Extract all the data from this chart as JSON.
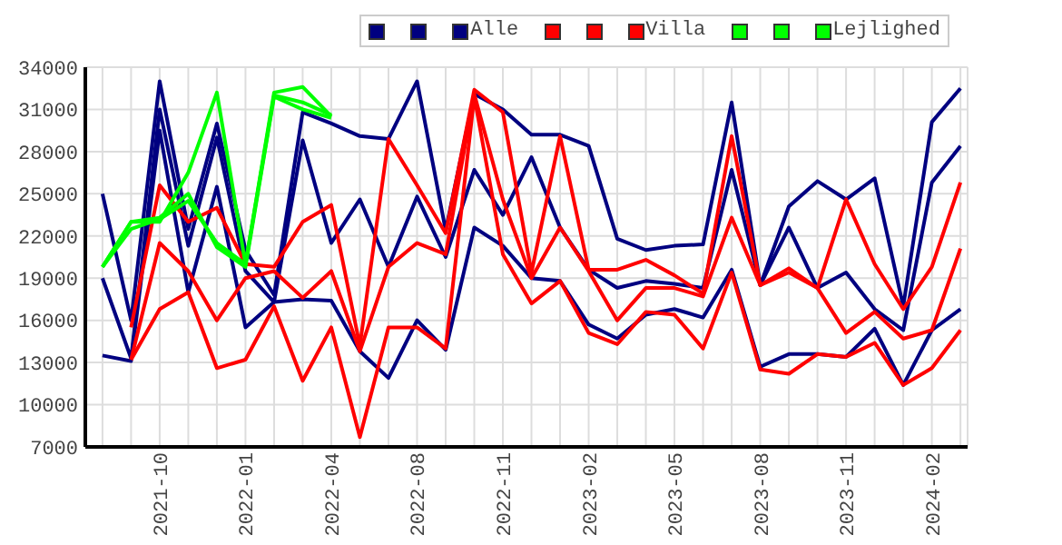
{
  "chart_data": {
    "type": "line",
    "categories": [
      null,
      null,
      "2021-10",
      null,
      null,
      "2022-01",
      null,
      null,
      "2022-04",
      null,
      null,
      "2022-08",
      null,
      null,
      "2022-11",
      null,
      null,
      "2023-02",
      null,
      null,
      "2023-05",
      null,
      null,
      "2023-08",
      null,
      null,
      "2023-11",
      null,
      null,
      "2024-02",
      null
    ],
    "series": [
      {
        "color": "#000080",
        "values": [
          25000,
          16000,
          33000,
          22500,
          30000,
          21000,
          17800,
          30800,
          30000,
          29100,
          28900,
          33000,
          22400,
          32100,
          31000,
          29200,
          29200,
          28400,
          21800,
          21000,
          21300,
          21400,
          31500,
          18500,
          24100,
          25900,
          24600,
          26100,
          17000,
          30100,
          32500
        ]
      },
      {
        "color": "#000080",
        "values": [
          19000,
          13300,
          31000,
          21300,
          29000,
          19500,
          17300,
          28800,
          21500,
          24600,
          19800,
          24800,
          20500,
          26700,
          23500,
          27600,
          22600,
          19600,
          18300,
          18800,
          18600,
          18300,
          26700,
          18500,
          22600,
          18300,
          19400,
          16800,
          15300,
          25800,
          28400
        ]
      },
      {
        "name": "Alle",
        "color": "#000080",
        "values": [
          13500,
          13100,
          29500,
          18000,
          25500,
          15500,
          17300,
          17500,
          17400,
          13800,
          11900,
          16000,
          13900,
          22600,
          21300,
          19000,
          18800,
          15700,
          14700,
          16400,
          16800,
          16200,
          19600,
          12700,
          13600,
          13600,
          13400,
          15400,
          11400,
          15300,
          16800
        ]
      },
      {
        "color": "#ff0000",
        "values": [
          null,
          15500,
          25600,
          23000,
          24000,
          20000,
          19800,
          23000,
          24200,
          14200,
          28900,
          25600,
          22200,
          32400,
          30800,
          19400,
          29100,
          19600,
          19600,
          20300,
          19200,
          17900,
          29100,
          18500,
          19700,
          18300,
          24600,
          20000,
          16800,
          19800,
          25800
        ]
      },
      {
        "color": "#ff0000",
        "values": [
          null,
          13200,
          21500,
          19500,
          16000,
          19000,
          19500,
          17600,
          19500,
          13800,
          19800,
          21500,
          20700,
          32100,
          24600,
          19000,
          22600,
          19500,
          16000,
          18300,
          18300,
          17700,
          23300,
          18500,
          19400,
          18300,
          15100,
          16600,
          14700,
          15300,
          21100
        ]
      },
      {
        "name": "Villa",
        "color": "#ff0000",
        "values": [
          null,
          13200,
          16800,
          18000,
          12600,
          13200,
          17000,
          11700,
          15500,
          7700,
          15500,
          15500,
          14000,
          31900,
          20700,
          17200,
          18800,
          15100,
          14300,
          16600,
          16400,
          14000,
          19400,
          12500,
          12200,
          13600,
          13400,
          14400,
          11400,
          12600,
          15300
        ]
      },
      {
        "color": "#00ff00",
        "values": [
          19800,
          23000,
          23000,
          26500,
          32200,
          20000,
          32200,
          32600,
          30500,
          null,
          null,
          null,
          null,
          null,
          null,
          null,
          null,
          null,
          null,
          null,
          null,
          null,
          null,
          null,
          null,
          null,
          null,
          null,
          null,
          null,
          null
        ]
      },
      {
        "color": "#00ff00",
        "values": [
          19800,
          23000,
          23300,
          25000,
          21200,
          19800,
          31900,
          31000,
          30400,
          null,
          null,
          null,
          null,
          null,
          null,
          null,
          null,
          null,
          null,
          null,
          null,
          null,
          null,
          null,
          null,
          null,
          null,
          null,
          null,
          null,
          null
        ]
      },
      {
        "name": "Lejlighed",
        "color": "#00ff00",
        "values": [
          19800,
          22500,
          23200,
          24500,
          21500,
          20000,
          32000,
          31500,
          30600,
          null,
          null,
          null,
          null,
          null,
          null,
          null,
          null,
          null,
          null,
          null,
          null,
          null,
          null,
          null,
          null,
          null,
          null,
          null,
          null,
          null,
          null
        ]
      }
    ],
    "ylim": [
      7000,
      34000
    ],
    "yticks": [
      7000,
      10000,
      13000,
      16000,
      19000,
      22000,
      25000,
      28000,
      31000,
      34000
    ],
    "grid": true,
    "legend": "top right",
    "marker": "none",
    "line_style": "solid"
  }
}
